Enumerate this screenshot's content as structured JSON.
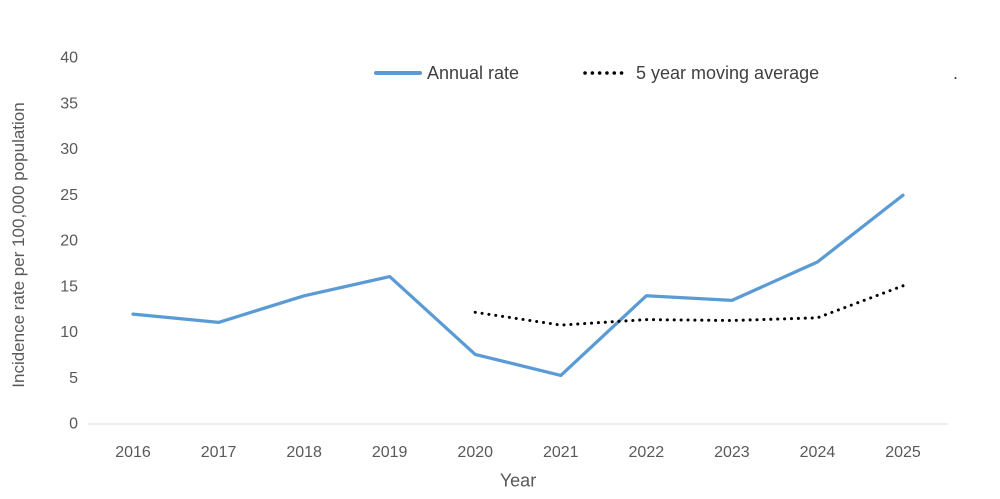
{
  "chart_data": {
    "type": "line",
    "title": "",
    "xlabel": "Year",
    "ylabel": "Incidence rate per 100,000 population",
    "x": [
      2016,
      2017,
      2018,
      2019,
      2020,
      2021,
      2022,
      2023,
      2024,
      2025
    ],
    "series": [
      {
        "name": "Annual rate",
        "style": "solid",
        "color": "#5B9BD5",
        "values": [
          11.9,
          11.0,
          13.9,
          16.0,
          7.5,
          5.2,
          13.9,
          13.4,
          17.6,
          24.9
        ]
      },
      {
        "name": "5 year moving average",
        "style": "dotted",
        "color": "#000000",
        "values": [
          null,
          null,
          null,
          null,
          12.1,
          10.7,
          11.3,
          11.2,
          11.5,
          15.0
        ]
      }
    ],
    "ylim": [
      0,
      40
    ],
    "yticks": [
      0,
      5,
      10,
      15,
      20,
      25,
      30,
      35,
      40
    ],
    "grid": false,
    "legend_position": "top"
  },
  "colors": {
    "series_blue": "#5B9BD5",
    "series_dotted": "#000000",
    "tick_text": "#595959",
    "legend_text": "#404040",
    "axis_line": "#D9D9D9",
    "background": "#FFFFFF"
  },
  "misc": {
    "stray_period": "."
  }
}
